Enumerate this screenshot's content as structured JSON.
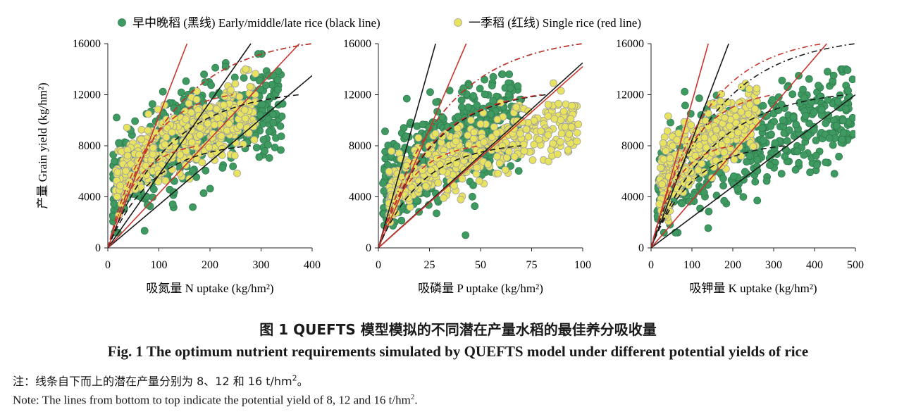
{
  "legend": {
    "series_1_label": "早中晚稻 (黑线) Early/middle/late rice (black line)",
    "series_2_label": "一季稻 (红线) Single rice (red line)"
  },
  "colors": {
    "early_middle_late_points": "#3f9a62",
    "early_middle_late_edge": "#2f7d4d",
    "single_points": "#e8e35e",
    "single_edge": "#a0a0a0",
    "black_line": "#1a1a1a",
    "red_line": "#c8372e"
  },
  "caption": {
    "cn": "图 1   QUEFTS 模型模拟的不同潜在产量水稻的最佳养分吸收量",
    "en": "Fig. 1   The optimum nutrient requirements simulated by QUEFTS model under different potential yields of rice"
  },
  "note": {
    "cn_main": "注：线条自下而上的潜在产量分别为 8、12 和 16 t/hm",
    "cn_sup": "2",
    "cn_end": "。",
    "en_main": "Note: The lines from bottom to top indicate the potential yield of 8, 12 and 16 t/hm",
    "en_sup": "2",
    "en_end": "."
  },
  "chart_data": [
    {
      "type": "scatter",
      "xlabel": "吸氮量 N uptake (kg/hm²)",
      "ylabel": "产量 Grain yield (kg/hm²)",
      "xlim": [
        0,
        400
      ],
      "ylim": [
        0,
        16000
      ],
      "xticks": [
        0,
        100,
        200,
        300,
        400
      ],
      "yticks": [
        0,
        4000,
        8000,
        12000,
        16000
      ],
      "grid": false,
      "series": [
        {
          "name": "早中晚稻 (黑线) Early/middle/late rice (black line)",
          "point_cloud": {
            "x_range": [
              10,
              345
            ],
            "y_range": [
              1200,
              15200
            ]
          }
        },
        {
          "name": "一季稻 (红线) Single rice (red line)",
          "point_cloud": {
            "x_range": [
              15,
              290
            ],
            "y_range": [
              2000,
              14000
            ]
          }
        }
      ],
      "lines": [
        {
          "series": "black",
          "style": "solid",
          "x": [
            0,
            280
          ],
          "y": [
            0,
            16000
          ]
        },
        {
          "series": "black",
          "style": "solid",
          "x": [
            0,
            400
          ],
          "y": [
            0,
            13500
          ]
        },
        {
          "series": "red",
          "style": "solid",
          "x": [
            0,
            155
          ],
          "y": [
            0,
            16000
          ]
        },
        {
          "series": "red",
          "style": "solid",
          "x": [
            0,
            375
          ],
          "y": [
            0,
            16000
          ]
        },
        {
          "series": "black",
          "style": "dashed",
          "target": 8000,
          "max_x": 280
        },
        {
          "series": "black",
          "style": "dashed",
          "target": 12000,
          "max_x": 375
        },
        {
          "series": "black",
          "style": "dash-dot",
          "target": 16000,
          "max_x": 400
        },
        {
          "series": "red",
          "style": "dashed",
          "target": 8000,
          "max_x": 180
        },
        {
          "series": "red",
          "style": "dashed",
          "target": 12000,
          "max_x": 245
        },
        {
          "series": "red",
          "style": "dash-dot",
          "target": 16000,
          "max_x": 400
        }
      ]
    },
    {
      "type": "scatter",
      "xlabel": "吸磷量 P uptake (kg/hm²)",
      "ylabel": "",
      "xlim": [
        0,
        100
      ],
      "ylim": [
        0,
        16000
      ],
      "xticks": [
        0,
        25,
        50,
        75,
        100
      ],
      "yticks": [
        0,
        4000,
        8000,
        12000,
        16000
      ],
      "grid": false,
      "series": [
        {
          "name": "早中晚稻 (黑线) Early/middle/late rice (black line)",
          "point_cloud": {
            "x_range": [
              2,
              70
            ],
            "y_range": [
              1000,
              13600
            ]
          }
        },
        {
          "name": "一季稻 (红线) Single rice (red line)",
          "point_cloud": {
            "x_range": [
              5,
              98
            ],
            "y_range": [
              1500,
              13000
            ]
          }
        }
      ],
      "lines": [
        {
          "series": "black",
          "style": "solid",
          "x": [
            0,
            28
          ],
          "y": [
            0,
            16000
          ]
        },
        {
          "series": "black",
          "style": "solid",
          "x": [
            0,
            100
          ],
          "y": [
            0,
            14500
          ]
        },
        {
          "series": "red",
          "style": "solid",
          "x": [
            0,
            43
          ],
          "y": [
            0,
            16000
          ]
        },
        {
          "series": "red",
          "style": "solid",
          "x": [
            0,
            100
          ],
          "y": [
            0,
            14200
          ]
        },
        {
          "series": "black",
          "style": "dashed",
          "target": 8000,
          "max_x": 70
        },
        {
          "series": "black",
          "style": "dashed",
          "target": 12000,
          "max_x": 82
        },
        {
          "series": "black",
          "style": "dash-dot",
          "target": 16000,
          "max_x": 100
        },
        {
          "series": "red",
          "style": "dashed",
          "target": 8000,
          "max_x": 50
        },
        {
          "series": "red",
          "style": "dashed",
          "target": 12000,
          "max_x": 80
        },
        {
          "series": "red",
          "style": "dash-dot",
          "target": 16000,
          "max_x": 100
        }
      ]
    },
    {
      "type": "scatter",
      "xlabel": "吸钾量 K uptake (kg/hm²)",
      "ylabel": "",
      "xlim": [
        0,
        500
      ],
      "ylim": [
        0,
        16000
      ],
      "xticks": [
        0,
        100,
        200,
        300,
        400,
        500
      ],
      "yticks": [
        0,
        4000,
        8000,
        12000,
        16000
      ],
      "grid": false,
      "series": [
        {
          "name": "早中晚稻 (黑线) Early/middle/late rice (black line)",
          "point_cloud": {
            "x_range": [
              15,
              495
            ],
            "y_range": [
              1200,
              14000
            ]
          }
        },
        {
          "name": "一季稻 (红线) Single rice (red line)",
          "point_cloud": {
            "x_range": [
              20,
              260
            ],
            "y_range": [
              2000,
              13500
            ]
          }
        }
      ],
      "lines": [
        {
          "series": "black",
          "style": "solid",
          "x": [
            0,
            190
          ],
          "y": [
            0,
            16000
          ]
        },
        {
          "series": "black",
          "style": "solid",
          "x": [
            0,
            500
          ],
          "y": [
            0,
            12000
          ]
        },
        {
          "series": "red",
          "style": "solid",
          "x": [
            0,
            140
          ],
          "y": [
            0,
            16000
          ]
        },
        {
          "series": "red",
          "style": "solid",
          "x": [
            0,
            430
          ],
          "y": [
            0,
            16000
          ]
        },
        {
          "series": "black",
          "style": "dashed",
          "target": 8000,
          "max_x": 330
        },
        {
          "series": "black",
          "style": "dashed",
          "target": 12000,
          "max_x": 480
        },
        {
          "series": "black",
          "style": "dash-dot",
          "target": 16000,
          "max_x": 500
        },
        {
          "series": "red",
          "style": "dashed",
          "target": 8000,
          "max_x": 200
        },
        {
          "series": "red",
          "style": "dashed",
          "target": 12000,
          "max_x": 300
        },
        {
          "series": "red",
          "style": "dash-dot",
          "target": 16000,
          "max_x": 420
        }
      ]
    }
  ]
}
